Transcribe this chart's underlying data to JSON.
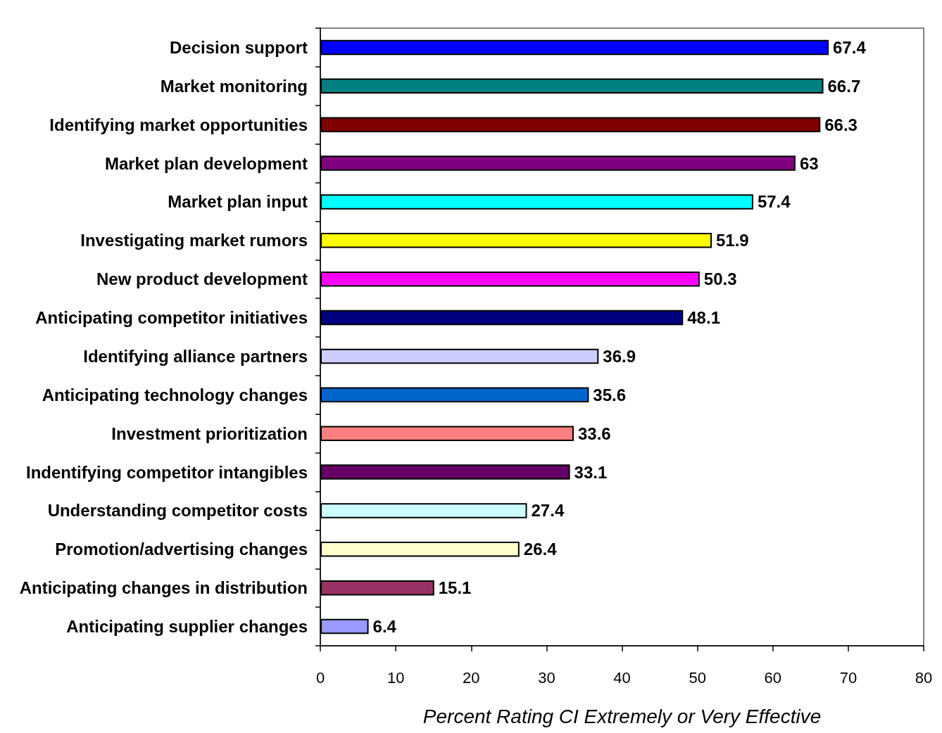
{
  "chart_data": {
    "type": "bar",
    "orientation": "horizontal",
    "categories": [
      "Decision support",
      "Market monitoring",
      "Identifying market opportunities",
      "Market plan development",
      "Market plan input",
      "Investigating market rumors",
      "New product development",
      "Anticipating competitor initiatives",
      "Identifying alliance partners",
      "Anticipating technology changes",
      "Investment prioritization",
      "Indentifying competitor intangibles",
      "Understanding competitor costs",
      "Promotion/advertising changes",
      "Anticipating changes in distribution",
      "Anticipating supplier changes"
    ],
    "values": [
      67.4,
      66.7,
      66.3,
      63,
      57.4,
      51.9,
      50.3,
      48.1,
      36.9,
      35.6,
      33.6,
      33.1,
      27.4,
      26.4,
      15.1,
      6.4
    ],
    "colors": [
      "#0000ff",
      "#008080",
      "#800000",
      "#800080",
      "#00ffff",
      "#ffff00",
      "#ff00ff",
      "#000080",
      "#ccccff",
      "#0066cc",
      "#ff8080",
      "#660066",
      "#ccffff",
      "#ffffcc",
      "#993366",
      "#9999ff"
    ],
    "xlabel": "Percent Rating CI Extremely or Very Effective",
    "xlim": [
      0,
      80
    ],
    "xticks": [
      0,
      10,
      20,
      30,
      40,
      50,
      60,
      70,
      80
    ],
    "data_labels": true,
    "grid": false
  }
}
